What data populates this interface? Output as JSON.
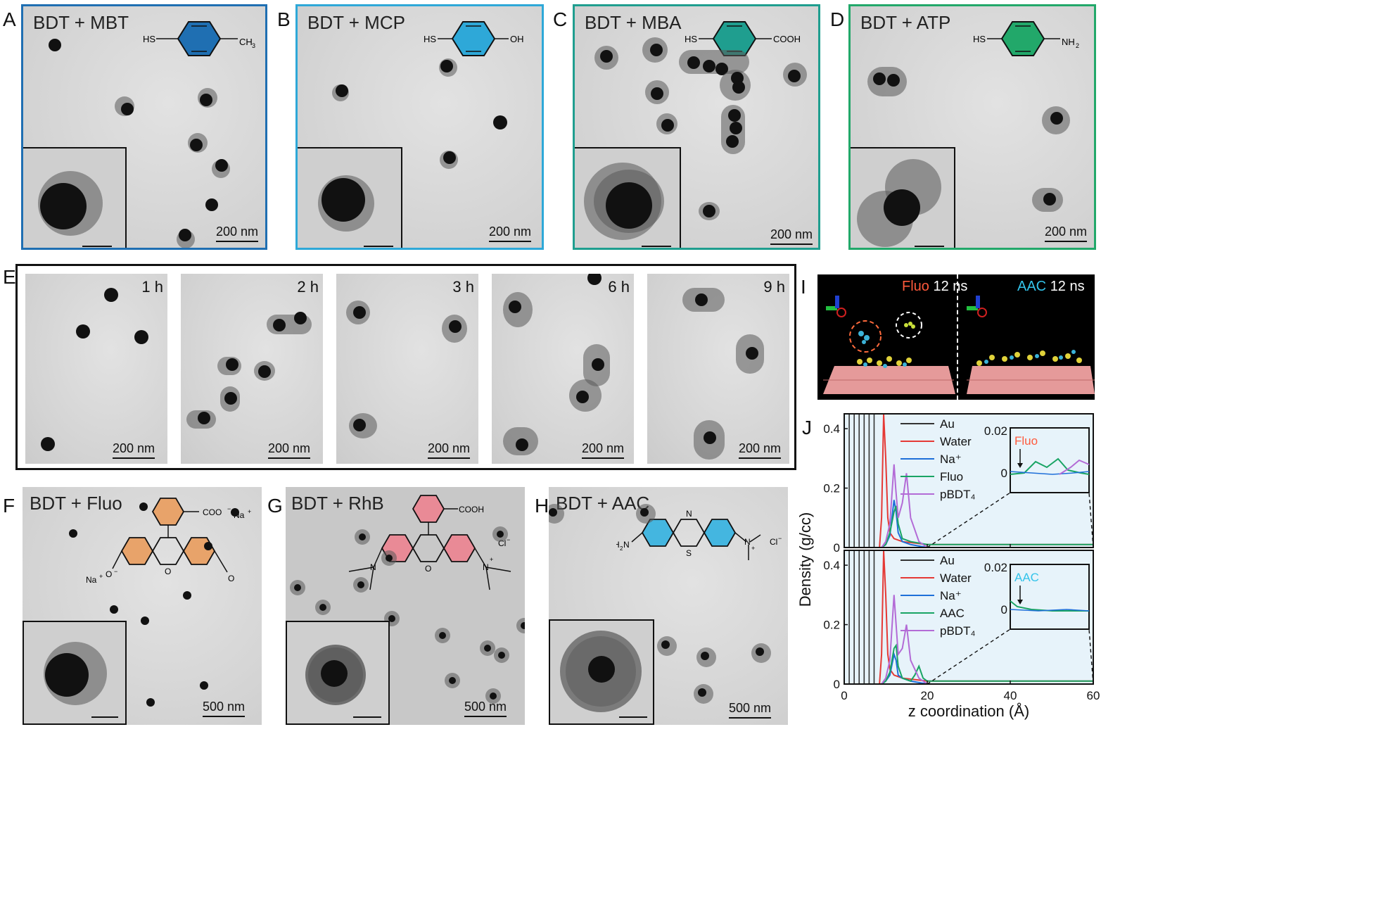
{
  "panels": {
    "A": {
      "letter": "A",
      "title": "BDT + MBT",
      "substituent": "CH",
      "substituent_sub": "3",
      "thiol": "HS",
      "scale": "200 nm",
      "color": "#1f6fb2"
    },
    "B": {
      "letter": "B",
      "title": "BDT + MCP",
      "substituent": "OH",
      "thiol": "HS",
      "scale": "200 nm",
      "color": "#2ea8d8"
    },
    "C": {
      "letter": "C",
      "title": "BDT + MBA",
      "substituent": "COOH",
      "thiol": "HS",
      "scale": "200 nm",
      "color": "#1f9e8f"
    },
    "D": {
      "letter": "D",
      "title": "BDT + ATP",
      "substituent": "NH",
      "substituent_sub": "2",
      "thiol": "HS",
      "scale": "200 nm",
      "color": "#22a86a"
    },
    "E": {
      "letter": "E",
      "times": [
        "1 h",
        "2 h",
        "3 h",
        "6 h",
        "9 h"
      ],
      "scale": "200 nm"
    },
    "F": {
      "letter": "F",
      "title": "BDT + Fluo",
      "scale": "500 nm",
      "color": "#e8a36a",
      "counterion": "Na",
      "coo": "COO"
    },
    "G": {
      "letter": "G",
      "title": "BDT + RhB",
      "scale": "500 nm",
      "color": "#e98a96",
      "cooh": "COOH",
      "cl": "Cl"
    },
    "H": {
      "letter": "H",
      "title": "BDT + AAC",
      "scale": "500 nm",
      "color": "#44b6e0",
      "amine": "H",
      "amine_n": "N",
      "ring_n": "N",
      "ring_s": "S",
      "cl": "Cl"
    },
    "I": {
      "letter": "I",
      "left_name": "Fluo",
      "left_time": "12 ns",
      "right_name": "AAC",
      "right_time": "12 ns",
      "left_color": "#ff5a3c",
      "right_color": "#33c3ea"
    },
    "J": {
      "letter": "J"
    }
  },
  "chart_data": [
    {
      "type": "line",
      "panel": "J-top",
      "xlabel": "z coordination (Å)",
      "ylabel": "Density (g/cc)",
      "xlim": [
        0,
        60
      ],
      "ylim": [
        0,
        0.45
      ],
      "xticks": [
        "0",
        "20",
        "40",
        "60"
      ],
      "yticks": [
        "0",
        "0.2",
        "0.4"
      ],
      "series": [
        {
          "name": "Au",
          "color": "#333333",
          "x": [
            0,
            1.2,
            2.4,
            3.6,
            4.8,
            6.0,
            7.2
          ],
          "y": [
            0.45,
            0.45,
            0.45,
            0.45,
            0.45,
            0.45,
            0.45
          ]
        },
        {
          "name": "Water",
          "color": "#e53935",
          "x": [
            8.5,
            9,
            9.5,
            10,
            10.5,
            11,
            12,
            14,
            20,
            60
          ],
          "y": [
            0,
            0.1,
            0.45,
            0.3,
            0.1,
            0.05,
            0.03,
            0.02,
            0.01,
            0.01
          ]
        },
        {
          "name": "Na⁺",
          "color": "#1e6fd9",
          "x": [
            9,
            10,
            11,
            12,
            12.5,
            13,
            14,
            16,
            20,
            60
          ],
          "y": [
            0,
            0.01,
            0.04,
            0.16,
            0.12,
            0.05,
            0.02,
            0.01,
            0,
            0
          ]
        },
        {
          "name": "Fluo",
          "color": "#19a464",
          "x": [
            9,
            10,
            11,
            12,
            12.5,
            13,
            14,
            16,
            20,
            60
          ],
          "y": [
            0,
            0.01,
            0.05,
            0.12,
            0.14,
            0.08,
            0.03,
            0.02,
            0.01,
            0.01
          ]
        },
        {
          "name": "pBDT₄",
          "color": "#b36bd6",
          "x": [
            9,
            10,
            11,
            12,
            12.4,
            13,
            14,
            15,
            16,
            18,
            20,
            60
          ],
          "y": [
            0,
            0.02,
            0.08,
            0.28,
            0.2,
            0.1,
            0.15,
            0.25,
            0.1,
            0.02,
            0,
            0
          ]
        }
      ],
      "inset": {
        "label": "Fluo",
        "label_color": "#ff5a3c",
        "ylim": [
          0,
          0.02
        ],
        "yticks": [
          "0",
          "0.02"
        ]
      }
    },
    {
      "type": "line",
      "panel": "J-bottom",
      "xlabel": "z coordination (Å)",
      "ylabel": "Density (g/cc)",
      "xlim": [
        0,
        60
      ],
      "ylim": [
        0,
        0.45
      ],
      "xticks": [
        "0",
        "20",
        "40",
        "60"
      ],
      "yticks": [
        "0",
        "0.2",
        "0.4"
      ],
      "series": [
        {
          "name": "Au",
          "color": "#333333",
          "x": [
            0,
            1.2,
            2.4,
            3.6,
            4.8,
            6.0,
            7.2
          ],
          "y": [
            0.45,
            0.45,
            0.45,
            0.45,
            0.45,
            0.45,
            0.45
          ]
        },
        {
          "name": "Water",
          "color": "#e53935",
          "x": [
            8.5,
            9,
            9.5,
            10,
            10.5,
            11,
            12,
            14,
            20,
            60
          ],
          "y": [
            0,
            0.1,
            0.45,
            0.3,
            0.1,
            0.05,
            0.03,
            0.02,
            0.01,
            0.01
          ]
        },
        {
          "name": "Na⁺",
          "color": "#1e6fd9",
          "x": [
            9,
            10,
            11,
            12,
            12.5,
            13,
            14,
            16,
            20,
            60
          ],
          "y": [
            0,
            0.01,
            0.03,
            0.1,
            0.08,
            0.03,
            0.02,
            0.01,
            0,
            0
          ]
        },
        {
          "name": "AAC",
          "color": "#19a464",
          "x": [
            9,
            10,
            11,
            12,
            12.5,
            13,
            14,
            16,
            17,
            18,
            19,
            20,
            60
          ],
          "y": [
            0,
            0.01,
            0.04,
            0.12,
            0.13,
            0.06,
            0.02,
            0.01,
            0.03,
            0.06,
            0.02,
            0.01,
            0.01
          ]
        },
        {
          "name": "pBDT₄",
          "color": "#b36bd6",
          "x": [
            9,
            10,
            11,
            12,
            12.4,
            13,
            14,
            15,
            16,
            18,
            20,
            60
          ],
          "y": [
            0,
            0.02,
            0.08,
            0.3,
            0.22,
            0.1,
            0.12,
            0.2,
            0.08,
            0.02,
            0,
            0
          ]
        }
      ],
      "inset": {
        "label": "AAC",
        "label_color": "#33c3ea",
        "ylim": [
          0,
          0.02
        ],
        "yticks": [
          "0",
          "0.02"
        ]
      }
    }
  ]
}
